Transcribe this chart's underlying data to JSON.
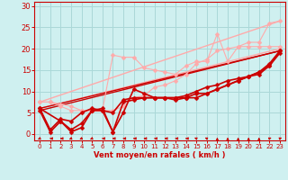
{
  "bg_color": "#cff0f0",
  "grid_color": "#aad8d8",
  "xlabel": "Vent moyen/en rafales ( km/h )",
  "xlabel_color": "#cc0000",
  "tick_color": "#cc0000",
  "xlim": [
    -0.5,
    23.5
  ],
  "ylim": [
    -1.5,
    31
  ],
  "yticks": [
    0,
    5,
    10,
    15,
    20,
    25,
    30
  ],
  "xticks": [
    0,
    1,
    2,
    3,
    4,
    5,
    6,
    7,
    8,
    9,
    10,
    11,
    12,
    13,
    14,
    15,
    16,
    17,
    18,
    19,
    20,
    21,
    22,
    23
  ],
  "series": [
    {
      "x": [
        0,
        23
      ],
      "y": [
        7.5,
        26.5
      ],
      "color": "#ffaaaa",
      "lw": 1.0,
      "marker": null,
      "ms": 0
    },
    {
      "x": [
        0,
        23
      ],
      "y": [
        6.0,
        20.0
      ],
      "color": "#ffaaaa",
      "lw": 1.0,
      "marker": null,
      "ms": 0
    },
    {
      "x": [
        0,
        23
      ],
      "y": [
        5.5,
        19.5
      ],
      "color": "#cc0000",
      "lw": 1.0,
      "marker": null,
      "ms": 0
    },
    {
      "x": [
        0,
        23
      ],
      "y": [
        6.0,
        19.5
      ],
      "color": "#cc0000",
      "lw": 1.0,
      "marker": null,
      "ms": 0
    },
    {
      "x": [
        0,
        1,
        2,
        3,
        4,
        5,
        6,
        7,
        8,
        9,
        10,
        11,
        12,
        13,
        14,
        15,
        16,
        17,
        18,
        19,
        20,
        21,
        22,
        23
      ],
      "y": [
        7.5,
        7.5,
        7.0,
        6.5,
        5.5,
        5.5,
        5.5,
        18.5,
        18.0,
        18.0,
        15.5,
        15.0,
        14.5,
        14.0,
        16.0,
        17.0,
        17.0,
        23.5,
        17.0,
        20.5,
        20.5,
        20.5,
        20.5,
        20.5
      ],
      "color": "#ffaaaa",
      "lw": 0.8,
      "marker": "D",
      "ms": 2.5
    },
    {
      "x": [
        0,
        1,
        2,
        3,
        4,
        5,
        6,
        7,
        8,
        9,
        10,
        11,
        12,
        13,
        14,
        15,
        16,
        17,
        18,
        19,
        20,
        21,
        22,
        23
      ],
      "y": [
        7.5,
        7.5,
        6.5,
        5.5,
        5.5,
        5.5,
        5.5,
        5.5,
        6.5,
        8.5,
        9.0,
        11.0,
        11.5,
        12.5,
        14.0,
        16.5,
        17.5,
        19.5,
        20.0,
        20.5,
        21.5,
        21.5,
        26.0,
        26.5
      ],
      "color": "#ffaaaa",
      "lw": 0.8,
      "marker": "D",
      "ms": 2.5
    },
    {
      "x": [
        0,
        1,
        2,
        3,
        4,
        5,
        6,
        7,
        8,
        9,
        10,
        11,
        12,
        13,
        14,
        15,
        16,
        17,
        18,
        19,
        20,
        21,
        22,
        23
      ],
      "y": [
        5.5,
        0.5,
        3.0,
        0.5,
        1.5,
        5.5,
        5.5,
        0.5,
        7.5,
        8.0,
        8.5,
        8.5,
        8.5,
        8.5,
        8.5,
        9.5,
        9.5,
        10.5,
        11.5,
        12.5,
        13.5,
        14.5,
        16.0,
        19.0
      ],
      "color": "#cc0000",
      "lw": 1.2,
      "marker": "D",
      "ms": 2.5
    },
    {
      "x": [
        0,
        2,
        3,
        4,
        5,
        6,
        7,
        8,
        9,
        10,
        11,
        12,
        13,
        14,
        15,
        16,
        17,
        18,
        19,
        20,
        21,
        22,
        23
      ],
      "y": [
        6.0,
        3.0,
        1.0,
        2.5,
        5.5,
        6.0,
        0.5,
        5.0,
        10.5,
        9.5,
        8.5,
        8.5,
        8.0,
        8.5,
        8.5,
        9.5,
        10.5,
        11.5,
        12.5,
        13.5,
        14.0,
        16.0,
        19.5
      ],
      "color": "#cc0000",
      "lw": 1.2,
      "marker": "D",
      "ms": 2.5
    },
    {
      "x": [
        0,
        1,
        2,
        3,
        4,
        5,
        6,
        7,
        8,
        9,
        10,
        11,
        12,
        13,
        14,
        15,
        16,
        17,
        18,
        19,
        20,
        21,
        22,
        23
      ],
      "y": [
        6.0,
        1.0,
        3.5,
        3.0,
        5.0,
        6.0,
        5.5,
        5.0,
        8.0,
        8.5,
        8.5,
        8.5,
        8.5,
        8.5,
        9.0,
        10.0,
        11.0,
        11.5,
        12.5,
        13.0,
        13.5,
        14.5,
        16.5,
        19.5
      ],
      "color": "#cc0000",
      "lw": 1.2,
      "marker": "D",
      "ms": 2.5
    }
  ],
  "wind_arrows": {
    "x": [
      0,
      1,
      2,
      3,
      4,
      5,
      6,
      7,
      8,
      9,
      10,
      11,
      12,
      13,
      14,
      15,
      16,
      17,
      18,
      19,
      20,
      21,
      22,
      23
    ],
    "angles": [
      225,
      270,
      270,
      225,
      225,
      225,
      270,
      270,
      270,
      270,
      270,
      270,
      270,
      270,
      270,
      315,
      315,
      0,
      0,
      0,
      0,
      0,
      45,
      45
    ]
  }
}
